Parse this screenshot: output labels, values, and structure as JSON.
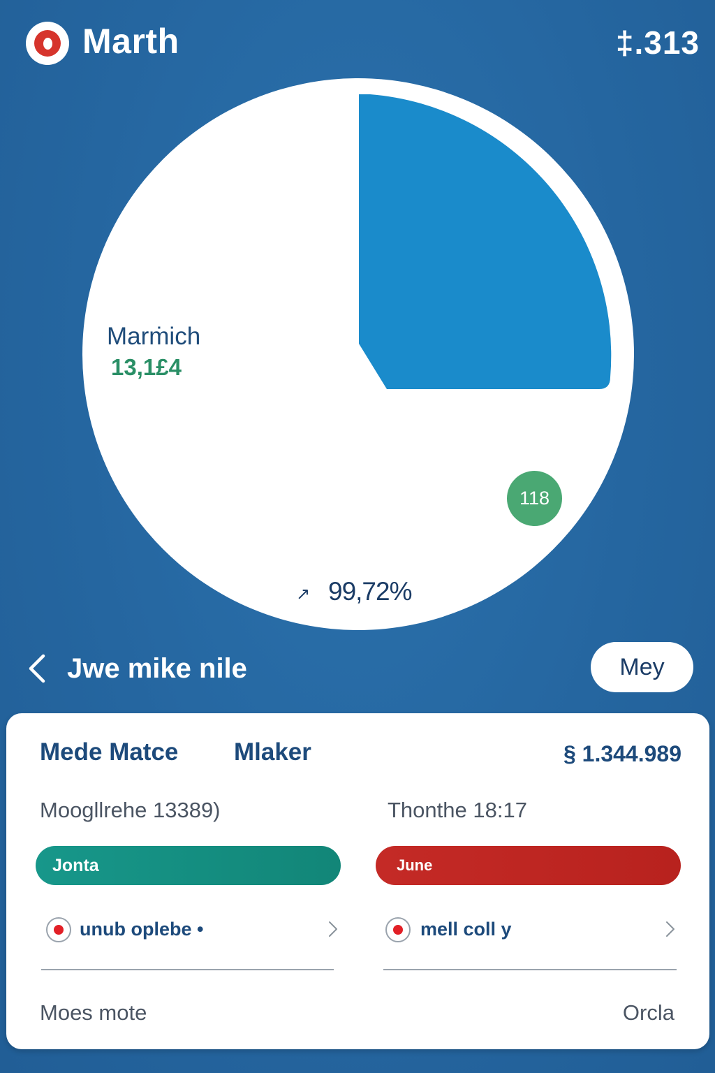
{
  "header": {
    "title": "Marth",
    "value": "‡.313"
  },
  "chart": {
    "segment_label": "Marṁich",
    "segment_value": "13,1£4",
    "badge": "118",
    "percent": "99,72%",
    "colors": {
      "slice": "#1a8bcb",
      "pie": "#ffffff",
      "badge": "#4aa873"
    }
  },
  "nav": {
    "title": "Jwe mike nile",
    "button": "Mey"
  },
  "card": {
    "heading_left": "Mede Matce",
    "heading_right": "Mlaker",
    "amount": "§ 1.344.989",
    "sub_left": "Moogllrehe 13389)",
    "sub_right": "Thonthe 18:17",
    "bar_left": "Jonta",
    "bar_right": "June",
    "option_left": "unub oplebe •",
    "option_right": "mell coll y",
    "footer_left": "Moes mote",
    "footer_right": "Orcla",
    "colors": {
      "bar_left": "#138a7d",
      "bar_right": "#be2622",
      "radio": "#e21f26"
    }
  }
}
